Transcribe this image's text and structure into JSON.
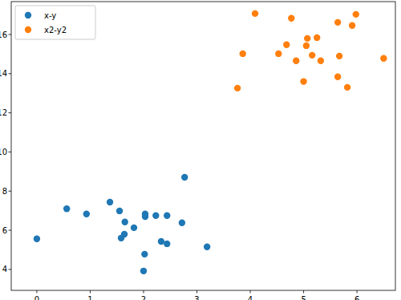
{
  "chart_data": {
    "type": "scatter",
    "legend": "upper left",
    "xlim": [
      -0.48,
      6.72
    ],
    "ylim": [
      2.93,
      17.68
    ],
    "xticks": [
      0,
      1,
      2,
      3,
      4,
      5,
      6
    ],
    "yticks": [
      4,
      6,
      8,
      10,
      12,
      14,
      16
    ],
    "series": [
      {
        "name": "x-y",
        "color": "#1f77b4",
        "marker": "circle",
        "x": [
          0,
          0.56,
          0.93,
          1.37,
          1.55,
          1.65,
          1.64,
          1.58,
          1.82,
          2.03,
          2.03,
          2.23,
          2.44,
          2.02,
          2.0,
          2.33,
          2.44,
          2.72,
          2.77,
          3.19
        ],
        "values": [
          5.56,
          7.1,
          6.83,
          7.44,
          6.99,
          6.42,
          5.8,
          5.6,
          6.13,
          6.83,
          6.7,
          6.75,
          6.75,
          4.78,
          3.92,
          5.43,
          5.31,
          6.38,
          8.71,
          5.15
        ]
      },
      {
        "name": "x2-y2",
        "color": "#ff7f0e",
        "marker": "circle",
        "x": [
          4.09,
          4.77,
          3.86,
          3.76,
          4.53,
          4.68,
          4.86,
          5.07,
          5.05,
          5.25,
          5.16,
          5.32,
          5.0,
          5.64,
          5.98,
          5.91,
          5.67,
          5.64,
          5.82,
          6.5
        ],
        "values": [
          17.07,
          16.83,
          15.02,
          13.26,
          15.02,
          15.48,
          14.66,
          15.8,
          15.43,
          15.84,
          14.94,
          14.66,
          13.6,
          16.62,
          17.03,
          16.46,
          14.9,
          13.84,
          13.3,
          14.78
        ]
      }
    ]
  }
}
